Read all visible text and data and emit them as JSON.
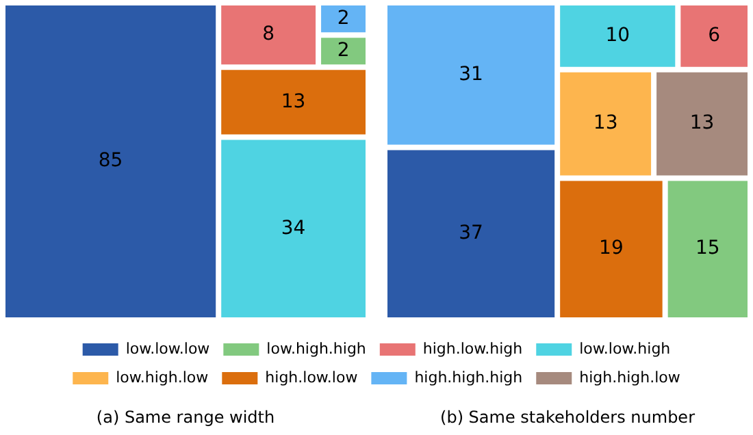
{
  "chart_data": {
    "type": "other",
    "categories": [
      "(a) Same range width",
      "(b) Same stakeholders number"
    ],
    "series": [
      {
        "name": "low.low.low",
        "color": "#2c5aa8",
        "values": [
          85,
          37
        ]
      },
      {
        "name": "low.high.high",
        "color": "#82c97f",
        "values": [
          2,
          15
        ]
      },
      {
        "name": "high.low.high",
        "color": "#e87474",
        "values": [
          8,
          6
        ]
      },
      {
        "name": "low.low.high",
        "color": "#4fd3e2",
        "values": [
          34,
          10
        ]
      },
      {
        "name": "low.high.low",
        "color": "#fdb54e",
        "values": [
          null,
          13
        ]
      },
      {
        "name": "high.low.low",
        "color": "#db6e0d",
        "values": [
          13,
          19
        ]
      },
      {
        "name": "high.high.high",
        "color": "#64b4f5",
        "values": [
          2,
          31
        ]
      },
      {
        "name": "high.high.low",
        "color": "#a68a7e",
        "values": [
          null,
          13
        ]
      }
    ],
    "data_labels": true,
    "legend": "bottom"
  }
}
